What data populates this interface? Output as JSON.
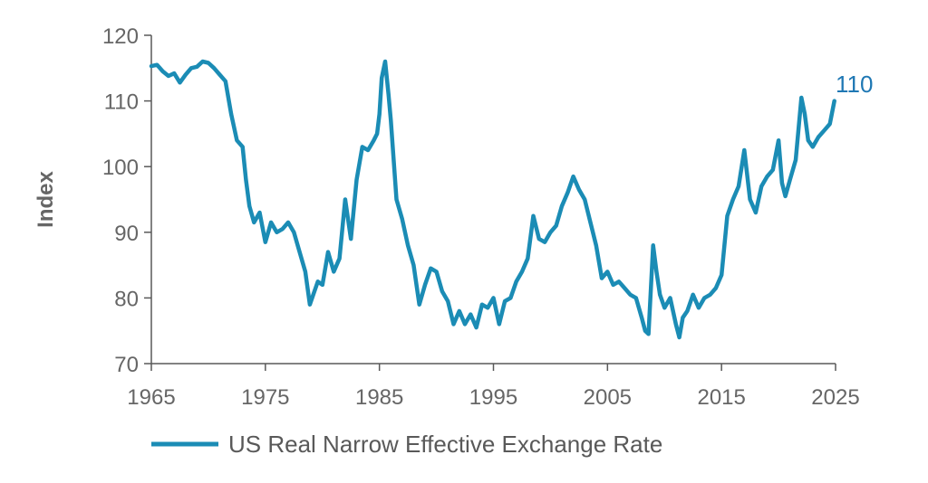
{
  "chart_data": {
    "type": "line",
    "title": "",
    "xlabel": "",
    "ylabel": "Index",
    "xlim": [
      1965,
      2025
    ],
    "ylim": [
      70,
      120
    ],
    "x_ticks": [
      1965,
      1975,
      1985,
      1995,
      2005,
      2015,
      2025
    ],
    "y_ticks": [
      70,
      80,
      90,
      100,
      110,
      120
    ],
    "grid": false,
    "legend_position": "bottom",
    "end_label": "110",
    "colors": {
      "series": "#1b8cb5",
      "axis": "#595959",
      "text": "#666666",
      "end_label": "#1f78b4"
    },
    "series": [
      {
        "name": "US Real Narrow Effective Exchange Rate",
        "x": [
          1965.0,
          1965.5,
          1966.0,
          1966.5,
          1967.0,
          1967.5,
          1968.0,
          1968.5,
          1969.0,
          1969.5,
          1970.0,
          1970.5,
          1971.0,
          1971.5,
          1972.0,
          1972.5,
          1973.0,
          1973.3,
          1973.6,
          1974.0,
          1974.5,
          1975.0,
          1975.5,
          1976.0,
          1976.5,
          1977.0,
          1977.5,
          1978.0,
          1978.5,
          1978.9,
          1979.2,
          1979.6,
          1980.0,
          1980.5,
          1981.0,
          1981.5,
          1982.0,
          1982.5,
          1983.0,
          1983.5,
          1984.0,
          1984.5,
          1984.8,
          1985.0,
          1985.2,
          1985.5,
          1985.8,
          1986.0,
          1986.5,
          1987.0,
          1987.5,
          1988.0,
          1988.5,
          1989.0,
          1989.5,
          1990.0,
          1990.5,
          1991.0,
          1991.5,
          1992.0,
          1992.5,
          1993.0,
          1993.5,
          1994.0,
          1994.5,
          1995.0,
          1995.5,
          1996.0,
          1996.5,
          1997.0,
          1997.5,
          1998.0,
          1998.5,
          1999.0,
          1999.5,
          2000.0,
          2000.5,
          2001.0,
          2001.5,
          2002.0,
          2002.5,
          2003.0,
          2003.5,
          2004.0,
          2004.5,
          2005.0,
          2005.5,
          2006.0,
          2006.5,
          2007.0,
          2007.5,
          2008.0,
          2008.3,
          2008.6,
          2009.0,
          2009.3,
          2009.6,
          2010.0,
          2010.5,
          2011.0,
          2011.3,
          2011.6,
          2012.0,
          2012.5,
          2013.0,
          2013.5,
          2014.0,
          2014.5,
          2015.0,
          2015.5,
          2016.0,
          2016.5,
          2017.0,
          2017.5,
          2018.0,
          2018.5,
          2019.0,
          2019.5,
          2020.0,
          2020.3,
          2020.6,
          2021.0,
          2021.5,
          2022.0,
          2022.3,
          2022.6,
          2023.0,
          2023.5,
          2024.0,
          2024.5,
          2024.9
        ],
        "values": [
          115.3,
          115.5,
          114.5,
          113.8,
          114.2,
          112.8,
          114.0,
          115.0,
          115.2,
          116.0,
          115.8,
          115.0,
          114.0,
          113.0,
          108.0,
          104.0,
          103.0,
          98.0,
          94.0,
          91.5,
          93.0,
          88.5,
          91.5,
          90.0,
          90.5,
          91.5,
          90.0,
          87.0,
          84.0,
          79.0,
          80.5,
          82.5,
          82.0,
          87.0,
          84.0,
          86.0,
          95.0,
          89.0,
          98.0,
          103.0,
          102.5,
          104.0,
          105.0,
          108.0,
          113.5,
          116.0,
          111.0,
          107.0,
          95.0,
          92.0,
          88.0,
          85.0,
          79.0,
          82.0,
          84.5,
          84.0,
          81.0,
          79.5,
          76.0,
          78.0,
          76.0,
          77.5,
          75.5,
          79.0,
          78.5,
          80.0,
          76.0,
          79.5,
          80.0,
          82.5,
          84.0,
          86.0,
          92.5,
          89.0,
          88.5,
          90.0,
          91.0,
          94.0,
          96.0,
          98.5,
          96.5,
          95.0,
          91.5,
          88.0,
          83.0,
          84.0,
          82.0,
          82.5,
          81.5,
          80.5,
          80.0,
          77.0,
          75.0,
          74.5,
          88.0,
          84.0,
          80.5,
          78.5,
          80.0,
          76.0,
          74.0,
          77.0,
          78.0,
          80.5,
          78.5,
          80.0,
          80.5,
          81.5,
          83.5,
          92.5,
          95.0,
          97.0,
          102.5,
          95.0,
          93.0,
          97.0,
          98.5,
          99.5,
          104.0,
          97.5,
          95.5,
          98.0,
          101.0,
          110.5,
          108.0,
          104.0,
          103.0,
          104.5,
          105.5,
          106.5,
          110.0
        ]
      }
    ]
  }
}
